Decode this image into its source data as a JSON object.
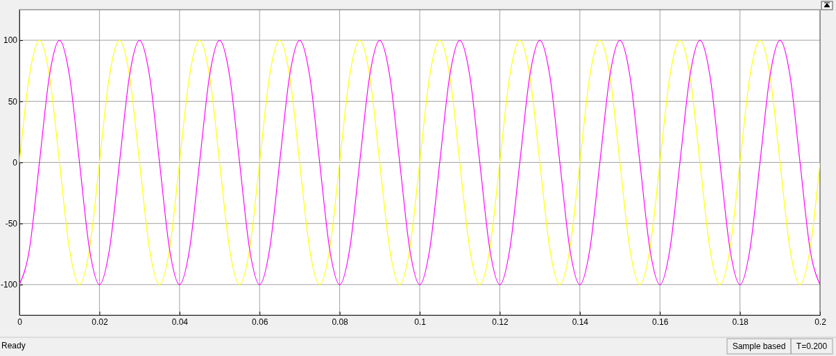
{
  "chart_data": {
    "type": "line",
    "x": [
      0,
      0.0025,
      0.005,
      0.0075,
      0.01,
      0.0125,
      0.015,
      0.0175,
      0.02,
      0.0225,
      0.025,
      0.0275,
      0.03,
      0.0325,
      0.035,
      0.0375,
      0.04,
      0.0425,
      0.045,
      0.0475,
      0.05,
      0.0525,
      0.055,
      0.0575,
      0.06,
      0.0625,
      0.065,
      0.0675,
      0.07,
      0.0725,
      0.075,
      0.0775,
      0.08,
      0.0825,
      0.085,
      0.0875,
      0.09,
      0.0925,
      0.095,
      0.0975,
      0.1,
      0.1025,
      0.105,
      0.1075,
      0.11,
      0.1125,
      0.115,
      0.1175,
      0.12,
      0.1225,
      0.125,
      0.1275,
      0.13,
      0.1325,
      0.135,
      0.1375,
      0.14,
      0.1425,
      0.145,
      0.1475,
      0.15,
      0.1525,
      0.155,
      0.1575,
      0.16,
      0.1625,
      0.165,
      0.1675,
      0.17,
      0.1725,
      0.175,
      0.1775,
      0.18,
      0.1825,
      0.185,
      0.1875,
      0.19,
      0.1925,
      0.195,
      0.1975,
      0.2
    ],
    "series": [
      {
        "color": "#ffff00",
        "values": [
          0,
          71,
          100,
          71,
          0,
          -71,
          -100,
          -71,
          0,
          71,
          100,
          71,
          0,
          -71,
          -100,
          -71,
          0,
          71,
          100,
          71,
          0,
          -71,
          -100,
          -71,
          0,
          71,
          100,
          71,
          0,
          -71,
          -100,
          -71,
          0,
          71,
          100,
          71,
          0,
          -71,
          -100,
          -71,
          0,
          71,
          100,
          71,
          0,
          -71,
          -100,
          -71,
          0,
          71,
          100,
          71,
          0,
          -71,
          -100,
          -71,
          0,
          71,
          100,
          71,
          0,
          -71,
          -100,
          -71,
          0,
          71,
          100,
          71,
          0,
          -71,
          -100,
          -71,
          0,
          71,
          100,
          71,
          0,
          -71,
          -100,
          -71,
          0
        ]
      },
      {
        "color": "#ff00ff",
        "values": [
          -100,
          -71,
          0,
          71,
          100,
          71,
          0,
          -71,
          -100,
          -71,
          0,
          71,
          100,
          71,
          0,
          -71,
          -100,
          -71,
          0,
          71,
          100,
          71,
          0,
          -71,
          -100,
          -71,
          0,
          71,
          100,
          71,
          0,
          -71,
          -100,
          -71,
          0,
          71,
          100,
          71,
          0,
          -71,
          -100,
          -71,
          0,
          71,
          100,
          71,
          0,
          -71,
          -100,
          -71,
          0,
          71,
          100,
          71,
          0,
          -71,
          -100,
          -71,
          0,
          71,
          100,
          71,
          0,
          -71,
          -100,
          -71,
          0,
          71,
          100,
          71,
          0,
          -71,
          -100,
          -71,
          0,
          71,
          100,
          71,
          0,
          -71,
          -100
        ]
      }
    ],
    "xlim": [
      0,
      0.2
    ],
    "xticks": [
      0,
      0.02,
      0.04,
      0.06,
      0.08,
      0.1,
      0.12,
      0.14,
      0.16,
      0.18,
      0.2
    ],
    "ylim": [
      -125,
      125
    ],
    "yticks": [
      -100,
      -50,
      0,
      50,
      100
    ],
    "grid": true,
    "annotations": [
      "Ready",
      "Sample based",
      "T=0.200"
    ]
  }
}
